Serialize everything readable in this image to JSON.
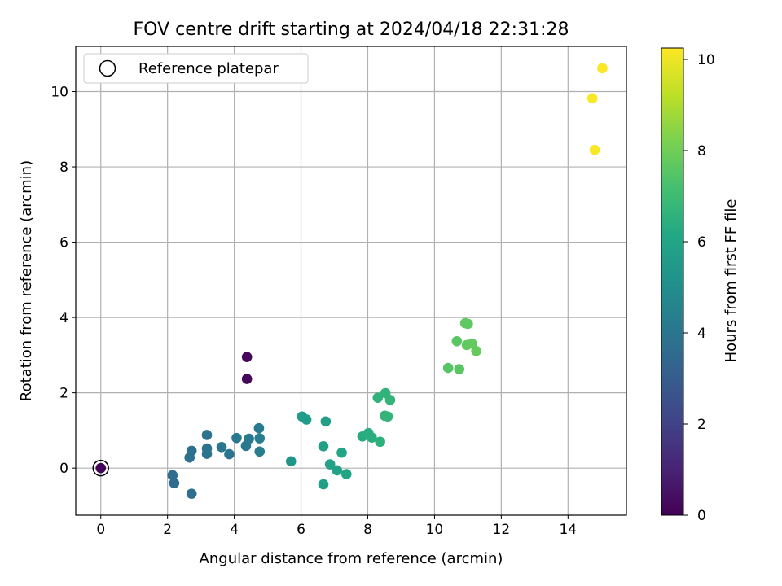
{
  "chart_data": {
    "type": "scatter",
    "title": "FOV centre drift starting at 2024/04/18 22:31:28",
    "xlabel": "Angular distance from reference (arcmin)",
    "ylabel": "Rotation from reference (arcmin)",
    "xlim": [
      -0.75,
      15.75
    ],
    "ylim": [
      -1.25,
      11.2
    ],
    "xticks": [
      0,
      2,
      4,
      6,
      8,
      10,
      12,
      14
    ],
    "yticks": [
      0,
      2,
      4,
      6,
      8,
      10
    ],
    "grid": true,
    "legend": {
      "position": "top-left",
      "entries": [
        "Reference platepar"
      ]
    },
    "colorbar": {
      "label": "Hours from first FF file",
      "range": [
        0,
        10.25
      ],
      "ticks": [
        0,
        2,
        4,
        6,
        8,
        10
      ],
      "colormap": "viridis"
    },
    "reference_point": {
      "x": 0,
      "y": 0
    },
    "points": [
      {
        "x": 0.0,
        "y": 0.0,
        "c": 0.1
      },
      {
        "x": 4.38,
        "y": 2.95,
        "c": 0.2
      },
      {
        "x": 4.38,
        "y": 2.37,
        "c": 0.2
      },
      {
        "x": 2.15,
        "y": -0.19,
        "c": 3.6
      },
      {
        "x": 2.2,
        "y": -0.4,
        "c": 3.6
      },
      {
        "x": 2.72,
        "y": -0.68,
        "c": 3.7
      },
      {
        "x": 2.66,
        "y": 0.28,
        "c": 3.8
      },
      {
        "x": 2.72,
        "y": 0.46,
        "c": 3.8
      },
      {
        "x": 3.18,
        "y": 0.88,
        "c": 3.9
      },
      {
        "x": 3.18,
        "y": 0.52,
        "c": 3.9
      },
      {
        "x": 3.18,
        "y": 0.38,
        "c": 3.9
      },
      {
        "x": 3.62,
        "y": 0.56,
        "c": 4.0
      },
      {
        "x": 3.85,
        "y": 0.37,
        "c": 4.0
      },
      {
        "x": 4.07,
        "y": 0.8,
        "c": 4.1
      },
      {
        "x": 4.35,
        "y": 0.59,
        "c": 4.1
      },
      {
        "x": 4.44,
        "y": 0.78,
        "c": 4.2
      },
      {
        "x": 4.74,
        "y": 1.06,
        "c": 4.2
      },
      {
        "x": 4.76,
        "y": 0.79,
        "c": 4.3
      },
      {
        "x": 4.76,
        "y": 0.44,
        "c": 4.3
      },
      {
        "x": 5.7,
        "y": 0.18,
        "c": 5.4
      },
      {
        "x": 6.03,
        "y": 1.37,
        "c": 5.6
      },
      {
        "x": 6.16,
        "y": 1.29,
        "c": 5.6
      },
      {
        "x": 6.67,
        "y": 0.58,
        "c": 5.8
      },
      {
        "x": 6.74,
        "y": 1.24,
        "c": 5.8
      },
      {
        "x": 6.67,
        "y": -0.43,
        "c": 5.8
      },
      {
        "x": 6.87,
        "y": 0.1,
        "c": 5.9
      },
      {
        "x": 7.08,
        "y": -0.06,
        "c": 5.9
      },
      {
        "x": 7.22,
        "y": 0.41,
        "c": 6.0
      },
      {
        "x": 7.36,
        "y": -0.16,
        "c": 6.0
      },
      {
        "x": 7.84,
        "y": 0.84,
        "c": 6.3
      },
      {
        "x": 8.02,
        "y": 0.93,
        "c": 6.4
      },
      {
        "x": 8.12,
        "y": 0.81,
        "c": 6.4
      },
      {
        "x": 8.37,
        "y": 0.7,
        "c": 6.5
      },
      {
        "x": 8.3,
        "y": 1.87,
        "c": 6.6
      },
      {
        "x": 8.53,
        "y": 1.99,
        "c": 6.6
      },
      {
        "x": 8.67,
        "y": 1.81,
        "c": 6.7
      },
      {
        "x": 8.51,
        "y": 1.39,
        "c": 6.7
      },
      {
        "x": 8.6,
        "y": 1.37,
        "c": 6.7
      },
      {
        "x": 10.41,
        "y": 2.66,
        "c": 7.5
      },
      {
        "x": 10.74,
        "y": 2.63,
        "c": 7.6
      },
      {
        "x": 10.67,
        "y": 3.37,
        "c": 7.6
      },
      {
        "x": 10.92,
        "y": 3.85,
        "c": 7.7
      },
      {
        "x": 11.0,
        "y": 3.83,
        "c": 7.7
      },
      {
        "x": 10.97,
        "y": 3.27,
        "c": 7.7
      },
      {
        "x": 11.12,
        "y": 3.31,
        "c": 7.8
      },
      {
        "x": 11.25,
        "y": 3.11,
        "c": 7.8
      },
      {
        "x": 14.73,
        "y": 9.82,
        "c": 10.2
      },
      {
        "x": 15.03,
        "y": 10.62,
        "c": 10.2
      },
      {
        "x": 14.8,
        "y": 8.45,
        "c": 10.2
      }
    ]
  }
}
